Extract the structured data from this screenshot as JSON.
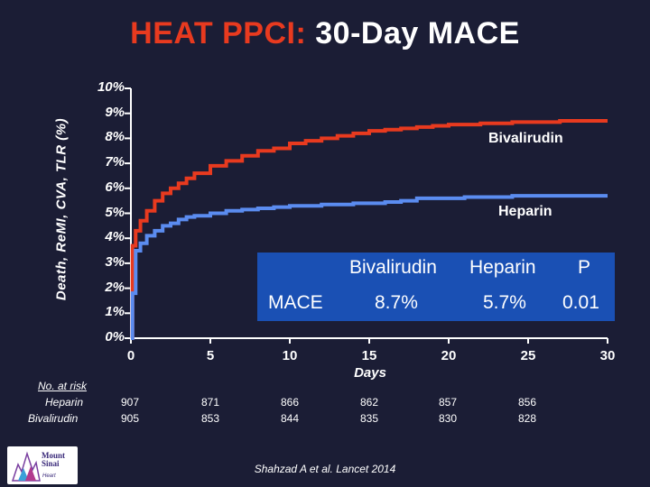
{
  "title": {
    "accent": "HEAT PPCI:",
    "rest": "30-Day MACE"
  },
  "chart_data": {
    "type": "line",
    "title": "HEAT PPCI: 30-Day MACE",
    "xlabel": "Days",
    "ylabel": "Death, ReMI, CVA, TLR (%)",
    "xlim": [
      0,
      30
    ],
    "ylim": [
      0,
      10
    ],
    "x_ticks": [
      "0",
      "5",
      "10",
      "15",
      "20",
      "25",
      "30"
    ],
    "y_ticks": [
      "0%",
      "1%",
      "2%",
      "3%",
      "4%",
      "5%",
      "6%",
      "7%",
      "8%",
      "9%",
      "10%"
    ],
    "series": [
      {
        "name": "Bivalirudin",
        "color": "#e83a1f",
        "x": [
          0,
          0.1,
          0.3,
          0.6,
          1,
          1.5,
          2,
          2.5,
          3,
          3.5,
          4,
          5,
          6,
          7,
          8,
          9,
          10,
          11,
          12,
          13,
          14,
          15,
          16,
          17,
          18,
          19,
          20,
          21,
          22,
          23,
          24,
          25,
          26,
          27,
          28,
          29,
          30
        ],
        "values": [
          0,
          3.7,
          4.3,
          4.7,
          5.1,
          5.5,
          5.8,
          6.0,
          6.2,
          6.4,
          6.6,
          6.9,
          7.1,
          7.3,
          7.5,
          7.6,
          7.8,
          7.9,
          8.0,
          8.1,
          8.2,
          8.3,
          8.35,
          8.4,
          8.45,
          8.5,
          8.55,
          8.55,
          8.6,
          8.6,
          8.65,
          8.65,
          8.65,
          8.7,
          8.7,
          8.7,
          8.7
        ]
      },
      {
        "name": "Heparin",
        "color": "#5b8cf0",
        "x": [
          0,
          0.1,
          0.3,
          0.6,
          1,
          1.5,
          2,
          2.5,
          3,
          3.5,
          4,
          5,
          6,
          7,
          8,
          9,
          10,
          11,
          12,
          13,
          14,
          15,
          16,
          17,
          18,
          19,
          20,
          21,
          22,
          23,
          24,
          25,
          26,
          27,
          28,
          29,
          30
        ],
        "values": [
          0,
          1.8,
          3.5,
          3.8,
          4.1,
          4.3,
          4.5,
          4.6,
          4.75,
          4.85,
          4.9,
          5.0,
          5.1,
          5.15,
          5.2,
          5.25,
          5.3,
          5.3,
          5.35,
          5.35,
          5.4,
          5.4,
          5.45,
          5.5,
          5.6,
          5.6,
          5.6,
          5.65,
          5.65,
          5.65,
          5.7,
          5.7,
          5.7,
          5.7,
          5.7,
          5.7,
          5.7
        ]
      }
    ],
    "series_labels": {
      "bivalirudin": "Bivalirudin",
      "heparin": "Heparin"
    },
    "mace_table": {
      "headers": [
        "Bivalirudin",
        "Heparin",
        "P"
      ],
      "row_label": "MACE",
      "values": [
        "8.7%",
        "5.7%",
        "0.01"
      ]
    },
    "number_at_risk": {
      "label": "No. at risk",
      "days": [
        "0",
        "5",
        "10",
        "15",
        "20",
        "25"
      ],
      "rows": [
        {
          "name": "Heparin",
          "values": [
            "907",
            "871",
            "866",
            "862",
            "857",
            "856"
          ]
        },
        {
          "name": "Bivalirudin",
          "values": [
            "905",
            "853",
            "844",
            "835",
            "830",
            "828"
          ]
        }
      ]
    }
  },
  "citation": "Shahzad A et al. Lancet 2014",
  "logo": {
    "line1": "Mount",
    "line2": "Sinai",
    "line3": "Heart"
  },
  "colors": {
    "background": "#1b1d35",
    "accent": "#e83a1f",
    "axis": "#ffffff",
    "box": "#1a50b4"
  }
}
